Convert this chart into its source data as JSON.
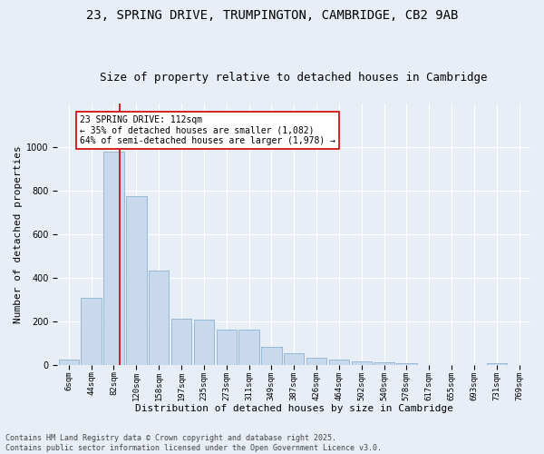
{
  "title_line1": "23, SPRING DRIVE, TRUMPINGTON, CAMBRIDGE, CB2 9AB",
  "title_line2": "Size of property relative to detached houses in Cambridge",
  "xlabel": "Distribution of detached houses by size in Cambridge",
  "ylabel": "Number of detached properties",
  "categories": [
    "6sqm",
    "44sqm",
    "82sqm",
    "120sqm",
    "158sqm",
    "197sqm",
    "235sqm",
    "273sqm",
    "311sqm",
    "349sqm",
    "387sqm",
    "426sqm",
    "464sqm",
    "502sqm",
    "540sqm",
    "578sqm",
    "617sqm",
    "655sqm",
    "693sqm",
    "731sqm",
    "769sqm"
  ],
  "values": [
    25,
    310,
    980,
    775,
    435,
    215,
    210,
    165,
    165,
    85,
    55,
    35,
    25,
    20,
    15,
    10,
    0,
    0,
    0,
    10,
    0
  ],
  "bar_color": "#c9d9ed",
  "bar_edge_color": "#7fa8cc",
  "vline_color": "#cc0000",
  "annotation_text": "23 SPRING DRIVE: 112sqm\n← 35% of detached houses are smaller (1,082)\n64% of semi-detached houses are larger (1,978) →",
  "annotation_box_color": "#ffffff",
  "annotation_box_edge": "#cc0000",
  "ylim": [
    0,
    1200
  ],
  "yticks": [
    0,
    200,
    400,
    600,
    800,
    1000
  ],
  "background_color": "#e8eef5",
  "plot_background": "#e8eef5",
  "grid_color": "#ffffff",
  "footnote": "Contains HM Land Registry data © Crown copyright and database right 2025.\nContains public sector information licensed under the Open Government Licence v3.0.",
  "title_fontsize": 10,
  "subtitle_fontsize": 9,
  "axis_label_fontsize": 8,
  "tick_fontsize": 6.5,
  "annotation_fontsize": 7
}
